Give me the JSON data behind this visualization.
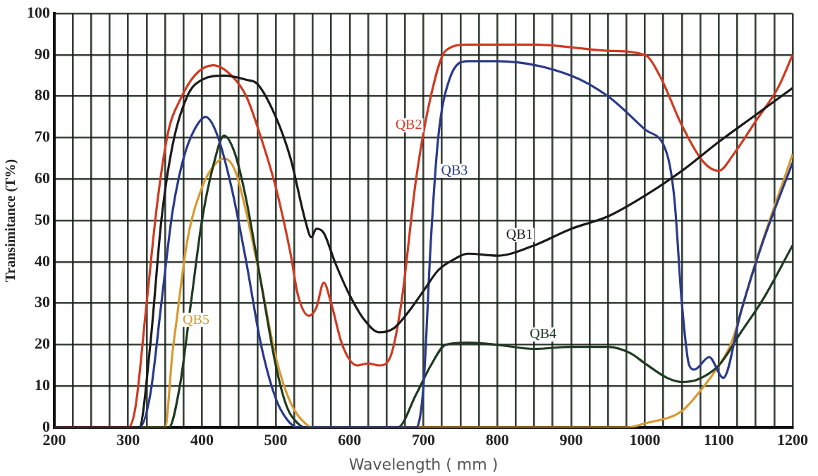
{
  "chart_data": {
    "type": "line",
    "xlabel": "Wavelength ( mm )",
    "ylabel": "Transimitance (T%)",
    "xlim": [
      200,
      1200
    ],
    "ylim": [
      0,
      100
    ],
    "xticks": [
      200,
      {
        "value": 225,
        "label": null
      },
      {
        "value": 250,
        "label": null
      },
      {
        "value": 275,
        "label": null
      },
      300,
      {
        "value": 325,
        "label": null
      },
      {
        "value": 350,
        "label": null
      },
      {
        "value": 375,
        "label": null
      },
      400,
      {
        "value": 425,
        "label": null
      },
      {
        "value": 450,
        "label": null
      },
      {
        "value": 475,
        "label": null
      },
      500,
      {
        "value": 525,
        "label": null
      },
      {
        "value": 550,
        "label": null
      },
      {
        "value": 575,
        "label": null
      },
      600,
      {
        "value": 625,
        "label": null
      },
      {
        "value": 650,
        "label": null
      },
      {
        "value": 675,
        "label": null
      },
      700,
      {
        "value": 725,
        "label": null
      },
      {
        "value": 750,
        "label": null
      },
      {
        "value": 775,
        "label": null
      },
      800,
      {
        "value": 825,
        "label": null
      },
      {
        "value": 850,
        "label": null
      },
      {
        "value": 875,
        "label": null
      },
      900,
      {
        "value": 925,
        "label": null
      },
      {
        "value": 950,
        "label": null
      },
      {
        "value": 975,
        "label": null
      },
      1000,
      {
        "value": 1025,
        "label": null
      },
      {
        "value": 1050,
        "label": null
      },
      {
        "value": 1075,
        "label": null
      },
      1100,
      {
        "value": 1125,
        "label": null
      },
      {
        "value": 1150,
        "label": null
      },
      {
        "value": 1175,
        "label": null
      },
      1200
    ],
    "yticks": [
      0,
      10,
      20,
      30,
      40,
      50,
      60,
      70,
      80,
      90,
      100
    ],
    "grid": true,
    "legend": false,
    "marker": "none",
    "line_style": "solid",
    "series": [
      {
        "name": "QB1",
        "color": "#1a1a1a",
        "x": [
          200,
          315,
          330,
          345,
          360,
          380,
          400,
          430,
          460,
          475,
          500,
          520,
          540,
          548,
          555,
          565,
          580,
          600,
          620,
          640,
          660,
          680,
          700,
          720,
          740,
          760,
          800,
          850,
          900,
          950,
          1000,
          1050,
          1100,
          1150,
          1200
        ],
        "values": [
          0,
          0,
          20,
          50,
          68,
          80,
          84,
          85,
          84,
          83,
          75,
          65,
          50,
          46,
          48,
          47,
          40,
          32,
          26,
          23,
          24,
          28,
          33,
          38,
          40.5,
          42,
          41.5,
          44,
          48,
          51,
          56,
          62,
          69,
          75.5,
          82
        ]
      },
      {
        "name": "QB2",
        "color": "#d03a20",
        "x": [
          200,
          300,
          310,
          325,
          340,
          355,
          370,
          390,
          415,
          440,
          460,
          480,
          500,
          520,
          530,
          545,
          555,
          565,
          575,
          590,
          610,
          625,
          640,
          655,
          670,
          690,
          710,
          730,
          760,
          850,
          950,
          1000,
          1020,
          1050,
          1080,
          1100,
          1120,
          1150,
          1180,
          1200
        ],
        "values": [
          0,
          0,
          5,
          30,
          55,
          72,
          79,
          85,
          87.5,
          85,
          80,
          70,
          58,
          42,
          32,
          27,
          29,
          35,
          30,
          20,
          15,
          15.5,
          15,
          17,
          30,
          60,
          80,
          91,
          92.5,
          92.5,
          91,
          90,
          85,
          73,
          64,
          62,
          66,
          74,
          82,
          90
        ]
      },
      {
        "name": "QB3",
        "color": "#2a3a8a",
        "x": [
          200,
          315,
          330,
          345,
          360,
          375,
          390,
          405,
          420,
          440,
          460,
          480,
          500,
          515,
          530,
          690,
          700,
          710,
          720,
          735,
          760,
          800,
          900,
          950,
          1000,
          1030,
          1040,
          1050,
          1060,
          1067,
          1087,
          1106,
          1130,
          1160,
          1200
        ],
        "values": [
          0,
          0,
          8,
          30,
          52,
          65,
          72,
          75,
          71,
          58,
          40,
          20,
          7,
          2,
          0,
          0,
          10,
          45,
          70,
          84,
          88.5,
          88.5,
          85,
          80,
          72,
          66,
          55,
          30,
          15,
          14,
          17,
          12,
          28,
          45,
          64
        ]
      },
      {
        "name": "QB4",
        "color": "#1e3a20",
        "x": [
          200,
          355,
          370,
          385,
          400,
          415,
          430,
          445,
          460,
          480,
          500,
          515,
          530,
          540,
          665,
          690,
          710,
          730,
          760,
          800,
          850,
          900,
          950,
          980,
          1000,
          1030,
          1050,
          1070,
          1100,
          1130,
          1160,
          1200
        ],
        "values": [
          0,
          0,
          10,
          30,
          50,
          63,
          70.5,
          66,
          55,
          35,
          15,
          5,
          1,
          0,
          0,
          8,
          15,
          20,
          20.5,
          20,
          19,
          19.5,
          19.5,
          18,
          15.5,
          12,
          11,
          11.5,
          15,
          23,
          31,
          44
        ]
      },
      {
        "name": "QB5",
        "color": "#d89a30",
        "x": [
          200,
          350,
          360,
          365,
          380,
          400,
          415,
          430,
          445,
          460,
          480,
          500,
          520,
          540,
          550,
          975,
          1000,
          1050,
          1080,
          1100,
          1116,
          1150,
          1200
        ],
        "values": [
          0,
          0,
          18,
          25,
          45,
          58,
          63,
          65,
          62,
          52,
          35,
          17,
          6,
          1,
          0,
          0,
          1,
          4,
          10,
          15,
          20,
          40,
          66
        ]
      }
    ]
  }
}
